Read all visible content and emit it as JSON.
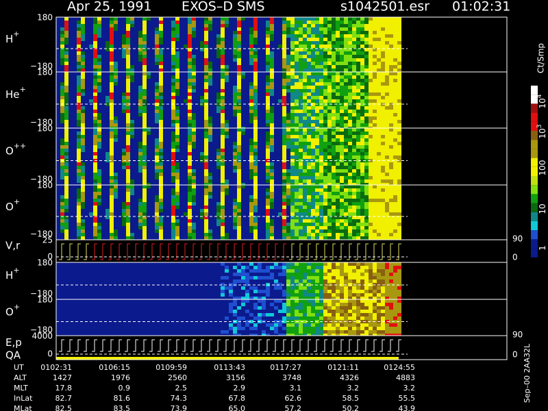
{
  "header": {
    "date": "Apr 25, 1991",
    "instrument": "EXOS–D SMS",
    "file": "s1042501.esr",
    "time": "01:02:31"
  },
  "panels": [
    {
      "label": "H",
      "sup": "+",
      "ticks": [
        "180",
        "−180"
      ]
    },
    {
      "label": "He",
      "sup": "+",
      "ticks": [
        "180",
        "−180"
      ]
    },
    {
      "label": "O",
      "sup": "++",
      "ticks": [
        "180",
        "−180"
      ]
    },
    {
      "label": "O",
      "sup": "+",
      "ticks": [
        "180",
        "−180"
      ]
    },
    {
      "label": "V,r",
      "ticks": [
        "25",
        "0"
      ],
      "right_ticks": [
        "90",
        "0"
      ]
    },
    {
      "label": "H",
      "sup": "+",
      "ticks": [
        "180",
        "−180"
      ]
    },
    {
      "label": "O",
      "sup": "+",
      "ticks": [
        "180",
        "−180"
      ]
    },
    {
      "label": "E,p",
      "label2": "QA",
      "ticks": [
        "4000",
        "0"
      ],
      "right_ticks": [
        "90",
        "0"
      ]
    }
  ],
  "colorbar": {
    "unit": "Ct/Smp",
    "ticks": [
      {
        "base": "10",
        "exp": "4"
      },
      {
        "base": "10",
        "exp": "3"
      },
      {
        "base": "100"
      },
      {
        "base": "10"
      },
      {
        "base": "1"
      }
    ]
  },
  "footer": {
    "rows": [
      [
        "UT",
        "0102:31",
        "0106:15",
        "0109:59",
        "0113:43",
        "0117:27",
        "0121:11",
        "0124:55"
      ],
      [
        "ALT",
        "1427",
        "1976",
        "2560",
        "3156",
        "3748",
        "4326",
        "4883"
      ],
      [
        "MLT",
        "17.8",
        "0.9",
        "2.5",
        "2.9",
        "3.1",
        "3.2",
        "3.2"
      ],
      [
        "InLat",
        "82.7",
        "81.6",
        "74.3",
        "67.8",
        "62.6",
        "58.5",
        "55.5"
      ],
      [
        "MLat",
        "82.5",
        "83.5",
        "73.9",
        "65.0",
        "57.2",
        "50.2",
        "43.9"
      ]
    ],
    "side_note": "Sep–00 2AA32L"
  }
}
